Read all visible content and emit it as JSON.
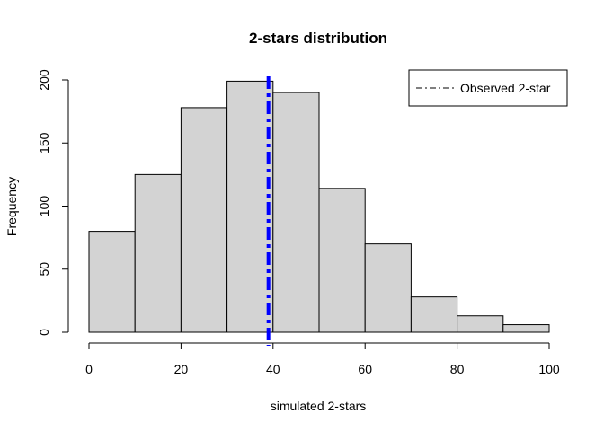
{
  "chart_data": {
    "type": "bar",
    "title": "2-stars distribution",
    "xlabel": "simulated 2-stars",
    "ylabel": "Frequency",
    "bins": [
      {
        "from": 0,
        "to": 10,
        "count": 80
      },
      {
        "from": 10,
        "to": 20,
        "count": 125
      },
      {
        "from": 20,
        "to": 30,
        "count": 178
      },
      {
        "from": 30,
        "to": 40,
        "count": 199
      },
      {
        "from": 40,
        "to": 50,
        "count": 190
      },
      {
        "from": 50,
        "to": 60,
        "count": 114
      },
      {
        "from": 60,
        "to": 70,
        "count": 70
      },
      {
        "from": 70,
        "to": 80,
        "count": 28
      },
      {
        "from": 80,
        "to": 90,
        "count": 13
      },
      {
        "from": 90,
        "to": 100,
        "count": 6
      }
    ],
    "xlim": [
      0,
      100
    ],
    "ylim": [
      0,
      200
    ],
    "x_ticks": [
      0,
      20,
      40,
      60,
      80,
      100
    ],
    "y_ticks": [
      0,
      50,
      100,
      150,
      200
    ],
    "observed_line": {
      "value": 39,
      "label": "Observed 2-star",
      "color": "#0000ff"
    },
    "bar_color": "#d3d3d3",
    "legend_position": "top-right",
    "grid": false
  }
}
